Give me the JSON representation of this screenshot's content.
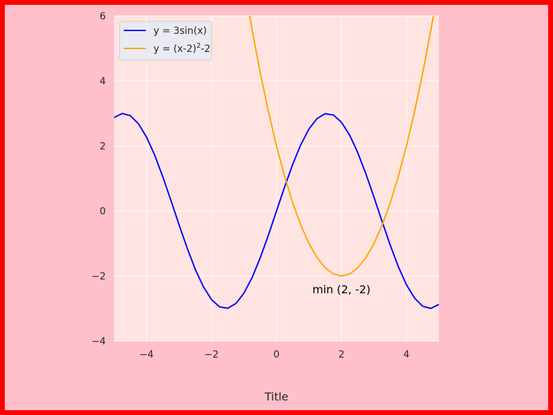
{
  "chart_data": {
    "type": "line",
    "title": "Title",
    "xlabel": "",
    "ylabel": "",
    "xlim": [
      -5,
      5
    ],
    "ylim": [
      -4,
      6
    ],
    "xticks": [
      -4,
      -2,
      0,
      2,
      4
    ],
    "xtick_labels": [
      "−4",
      "−2",
      "0",
      "2",
      "4"
    ],
    "yticks": [
      -4,
      -2,
      0,
      2,
      4,
      6
    ],
    "ytick_labels": [
      "−4",
      "−2",
      "0",
      "2",
      "4",
      "6"
    ],
    "grid": true,
    "legend_position": "upper-left",
    "legend": {
      "s1_prefix": "y = 3sin(x)",
      "s2_prefix": "y = (x-2)",
      "s2_sup": "2",
      "s2_suffix": "-2"
    },
    "annotation": {
      "text": "min (2, -2)",
      "x": 2,
      "y": -2.4
    },
    "series": [
      {
        "color": "#0000ff",
        "x": [
          -5,
          -4.75,
          -4.5,
          -4.25,
          -4,
          -3.75,
          -3.5,
          -3.25,
          -3,
          -2.75,
          -2.5,
          -2.25,
          -2,
          -1.75,
          -1.5,
          -1.25,
          -1,
          -0.75,
          -0.5,
          -0.25,
          0,
          0.25,
          0.5,
          0.75,
          1,
          1.25,
          1.5,
          1.75,
          2,
          2.25,
          2.5,
          2.75,
          3,
          3.25,
          3.5,
          3.75,
          4,
          4.25,
          4.5,
          4.75,
          5
        ],
        "y": [
          2.877,
          2.997,
          2.932,
          2.684,
          2.27,
          1.716,
          1.052,
          0.324,
          -0.423,
          -1.143,
          -1.795,
          -2.334,
          -2.728,
          -2.951,
          -2.992,
          -2.847,
          -2.524,
          -2.045,
          -1.438,
          -0.742,
          0,
          0.742,
          1.438,
          2.045,
          2.524,
          2.847,
          2.992,
          2.951,
          2.728,
          2.334,
          1.795,
          1.143,
          0.423,
          -0.324,
          -1.052,
          -1.716,
          -2.27,
          -2.684,
          -2.932,
          -2.997,
          -2.877
        ]
      },
      {
        "color": "#ffa500",
        "x": [
          -0.9,
          -0.75,
          -0.5,
          -0.25,
          0,
          0.25,
          0.5,
          0.75,
          1,
          1.25,
          1.5,
          1.75,
          2,
          2.25,
          2.5,
          2.75,
          3,
          3.25,
          3.5,
          3.75,
          4,
          4.25,
          4.5,
          4.75,
          4.85
        ],
        "y": [
          6.41,
          5.563,
          4.25,
          3.063,
          2,
          1.063,
          0.25,
          -0.438,
          -1,
          -1.438,
          -1.75,
          -1.938,
          -2,
          -1.938,
          -1.75,
          -1.438,
          -1,
          -0.438,
          0.25,
          1.063,
          2,
          3.063,
          4.25,
          5.563,
          6.123
        ]
      }
    ]
  }
}
